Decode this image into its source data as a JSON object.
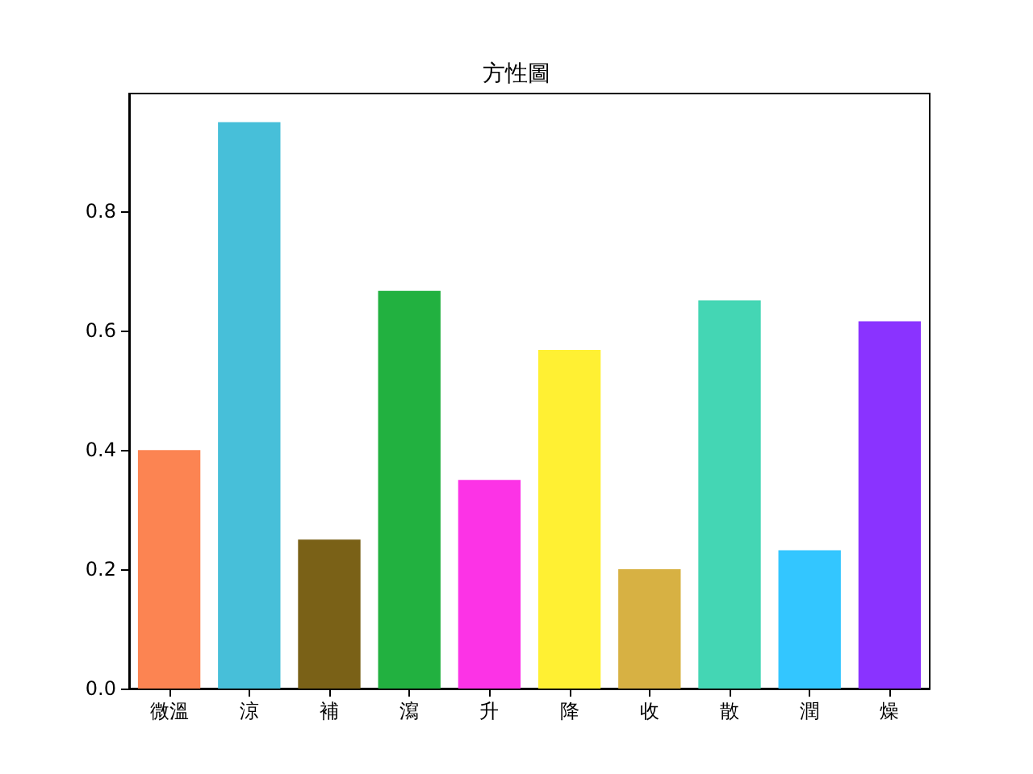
{
  "chart_data": {
    "type": "bar",
    "title": "方性圖",
    "categories": [
      "微溫",
      "涼",
      "補",
      "瀉",
      "升",
      "降",
      "收",
      "散",
      "潤",
      "燥"
    ],
    "values": [
      0.4,
      0.95,
      0.25,
      0.667,
      0.35,
      0.568,
      0.2,
      0.651,
      0.232,
      0.616
    ],
    "colors": [
      "#fc8452",
      "#47bfd9",
      "#7a6117",
      "#22b140",
      "#fc33e6",
      "#fff033",
      "#d7b143",
      "#44d6b4",
      "#33c6ff",
      "#8a33ff"
    ],
    "ylim": [
      0,
      0.998
    ],
    "yticks": [
      {
        "value": 0,
        "label": "0.0"
      },
      {
        "value": 0.2,
        "label": "0.2"
      },
      {
        "value": 0.4,
        "label": "0.4"
      },
      {
        "value": 0.6,
        "label": "0.6"
      },
      {
        "value": 0.8,
        "label": "0.8"
      }
    ],
    "grid": false
  }
}
